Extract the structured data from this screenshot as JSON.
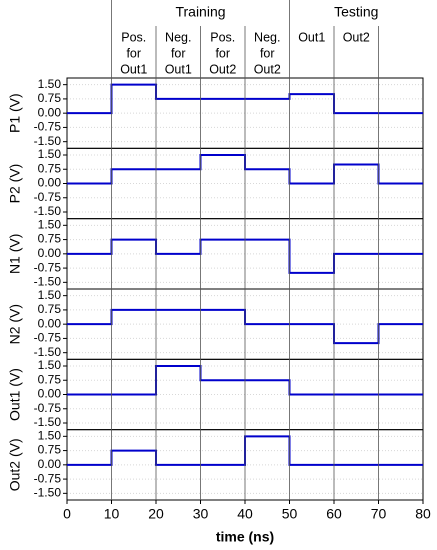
{
  "annotations": {
    "groups": [
      "Training",
      "Testing"
    ],
    "columns": [
      [
        "Pos.",
        "for",
        "Out1"
      ],
      [
        "Neg.",
        "for",
        "Out1"
      ],
      [
        "Pos.",
        "for",
        "Out2"
      ],
      [
        "Neg.",
        "for",
        "Out2"
      ],
      [
        "Out1"
      ],
      [
        "Out2"
      ]
    ]
  },
  "chart_data": [
    {
      "type": "line",
      "ylabel": "P1 (V)",
      "step": "post",
      "x": [
        0,
        10,
        20,
        30,
        40,
        50,
        60,
        70,
        80
      ],
      "xlim": [
        0,
        80
      ],
      "ylim": [
        -1.85,
        1.85
      ],
      "yticks": [
        {
          "value": 1.5,
          "label": "1.50"
        },
        0.75,
        {
          "value": 0,
          "label": "0.00"
        },
        -0.75,
        {
          "value": -1.5,
          "label": "-1.50"
        }
      ],
      "grid": true,
      "series": [
        {
          "color": "#0000cc",
          "values": [
            0,
            1.5,
            0.75,
            0.75,
            0.75,
            1.0,
            0,
            0,
            0
          ]
        }
      ]
    },
    {
      "type": "line",
      "ylabel": "P2 (V)",
      "step": "post",
      "x": [
        0,
        10,
        20,
        30,
        40,
        50,
        60,
        70,
        80
      ],
      "xlim": [
        0,
        80
      ],
      "ylim": [
        -1.85,
        1.85
      ],
      "yticks": [
        {
          "value": 1.5,
          "label": "1.50"
        },
        0.75,
        {
          "value": 0,
          "label": "0.00"
        },
        -0.75,
        {
          "value": -1.5,
          "label": "-1.50"
        }
      ],
      "grid": true,
      "series": [
        {
          "color": "#0000cc",
          "values": [
            0,
            0.75,
            0.75,
            1.5,
            0.75,
            0,
            1.0,
            0,
            0
          ]
        }
      ]
    },
    {
      "type": "line",
      "ylabel": "N1 (V)",
      "step": "post",
      "x": [
        0,
        10,
        20,
        30,
        40,
        50,
        60,
        70,
        80
      ],
      "xlim": [
        0,
        80
      ],
      "ylim": [
        -1.85,
        1.85
      ],
      "yticks": [
        {
          "value": 1.5,
          "label": "1.50"
        },
        0.75,
        {
          "value": 0,
          "label": "0.00"
        },
        -0.75,
        {
          "value": -1.5,
          "label": "-1.50"
        }
      ],
      "grid": true,
      "series": [
        {
          "color": "#0000cc",
          "values": [
            0,
            0.75,
            0,
            0.75,
            0.75,
            -1.0,
            0,
            0,
            0
          ]
        }
      ]
    },
    {
      "type": "line",
      "ylabel": "N2 (V)",
      "step": "post",
      "x": [
        0,
        10,
        20,
        30,
        40,
        50,
        60,
        70,
        80
      ],
      "xlim": [
        0,
        80
      ],
      "ylim": [
        -1.85,
        1.85
      ],
      "yticks": [
        {
          "value": 1.5,
          "label": "1.50"
        },
        0.75,
        {
          "value": 0,
          "label": "0.00"
        },
        -0.75,
        {
          "value": -1.5,
          "label": "-1.50"
        }
      ],
      "grid": true,
      "series": [
        {
          "color": "#0000cc",
          "values": [
            0,
            0.75,
            0.75,
            0.75,
            0,
            0,
            -1.0,
            0,
            0
          ]
        }
      ]
    },
    {
      "type": "line",
      "ylabel": "Out1 (V)",
      "step": "post",
      "x": [
        0,
        10,
        20,
        30,
        40,
        50,
        60,
        70,
        80
      ],
      "xlim": [
        0,
        80
      ],
      "ylim": [
        -1.85,
        1.85
      ],
      "yticks": [
        {
          "value": 1.5,
          "label": "1.50"
        },
        0.75,
        {
          "value": 0,
          "label": "0.00"
        },
        -0.75,
        {
          "value": -1.5,
          "label": "-1.50"
        }
      ],
      "grid": true,
      "series": [
        {
          "color": "#0000cc",
          "values": [
            0,
            0,
            1.5,
            0.75,
            0.75,
            0,
            0,
            0,
            0
          ]
        }
      ]
    },
    {
      "type": "line",
      "ylabel": "Out2 (V)",
      "step": "post",
      "x": [
        0,
        10,
        20,
        30,
        40,
        50,
        60,
        70,
        80
      ],
      "xlim": [
        0,
        80
      ],
      "ylim": [
        -1.85,
        1.85
      ],
      "yticks": [
        {
          "value": 1.5,
          "label": "1.50"
        },
        0.75,
        {
          "value": 0,
          "label": "0.00"
        },
        -0.75,
        {
          "value": -1.5,
          "label": "-1.50"
        }
      ],
      "grid": true,
      "xticks": [
        0,
        10,
        20,
        30,
        40,
        50,
        60,
        70,
        80
      ],
      "xlabel": "time (ns)",
      "series": [
        {
          "color": "#0000cc",
          "values": [
            0,
            0.75,
            0,
            0,
            1.5,
            0,
            0,
            0,
            0
          ]
        }
      ]
    }
  ]
}
